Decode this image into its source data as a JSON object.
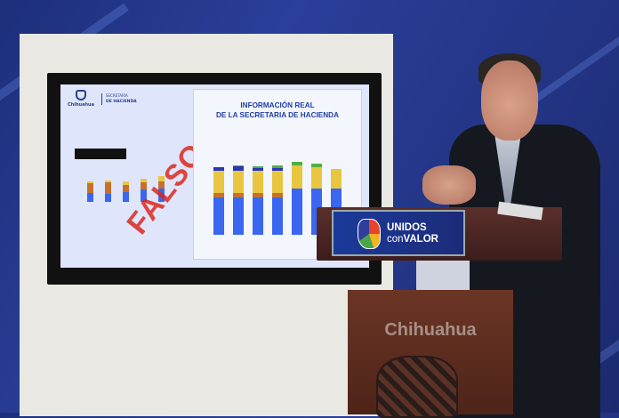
{
  "screen": {
    "logo_text": "Chihuahua",
    "secretaria_small": "SECRETARÍA",
    "secretaria_main": "DE HACIENDA",
    "stamp": "FALSO",
    "title_line1": "INFORMACIÓN REAL",
    "title_line2": "DE LA SECRETARIA DE HACIENDA"
  },
  "podium": {
    "sign_line1": "UNIDOS",
    "sign_con": "con",
    "sign_valor": "VALOR",
    "front_text": "Chihuahua"
  },
  "colors": {
    "bar_blue": "#3b66f0",
    "bar_orange": "#c8702a",
    "bar_yellow": "#e8c640",
    "bar_green": "#4fb040",
    "bar_navy": "#2a35b8",
    "stamp": "#dc281e"
  }
}
